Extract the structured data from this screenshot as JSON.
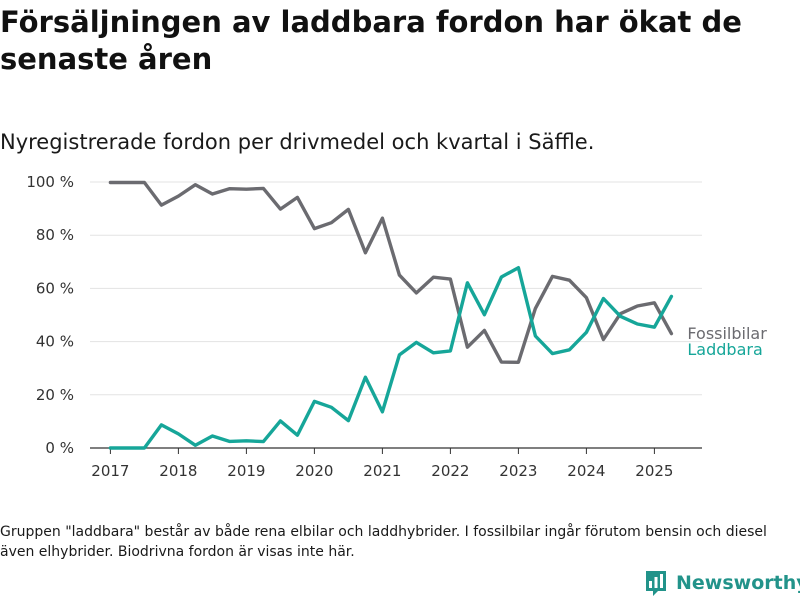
{
  "title": "Försäljningen av laddbara fordon har ökat de senaste åren",
  "subtitle": "Nyregistrerade fordon per drivmedel och kvartal i Säffle.",
  "footnote": "Gruppen \"laddbara\" består av både rena elbilar och laddhybrider. I fossilbilar ingår förutom bensin och diesel även elhybrider. Biodrivna fordon är visas inte här.",
  "brand": {
    "name": "Newsworthy",
    "logo_icon": "bar-chart-logo-icon",
    "color": "#22938a"
  },
  "chart_data": {
    "type": "line",
    "x_tick_labels": [
      "2017",
      "2018",
      "2019",
      "2020",
      "2021",
      "2022",
      "2023",
      "2024",
      "2025"
    ],
    "y_tick_labels": [
      "0 %",
      "20 %",
      "40 %",
      "60 %",
      "80 %",
      "100 %"
    ],
    "y_ticks": [
      0,
      20,
      40,
      60,
      80,
      100
    ],
    "ylim": [
      0,
      100
    ],
    "xlim": [
      2016.7,
      2025.7
    ],
    "grid": true,
    "x": [
      2017.0,
      2017.25,
      2017.5,
      2017.75,
      2018.0,
      2018.25,
      2018.5,
      2018.75,
      2019.0,
      2019.25,
      2019.5,
      2019.75,
      2020.0,
      2020.25,
      2020.5,
      2020.75,
      2021.0,
      2021.25,
      2021.5,
      2021.75,
      2022.0,
      2022.25,
      2022.5,
      2022.75,
      2023.0,
      2023.25,
      2023.5,
      2023.75,
      2024.0,
      2024.25,
      2024.5,
      2024.75,
      2025.0,
      2025.25
    ],
    "series": [
      {
        "name": "Fossilbilar",
        "color": "#6b6b70",
        "values": [
          99.8,
          99.8,
          99.8,
          91.3,
          94.7,
          99.0,
          95.5,
          97.5,
          97.3,
          97.6,
          89.8,
          94.2,
          82.5,
          84.7,
          89.7,
          73.4,
          86.4,
          65.0,
          58.3,
          64.2,
          63.5,
          37.9,
          44.2,
          32.3,
          32.2,
          52.5,
          64.5,
          63.1,
          56.5,
          40.8,
          50.5,
          53.4,
          54.6,
          43.0
        ]
      },
      {
        "name": "Laddbara",
        "color": "#16a699",
        "values": [
          0.0,
          0.0,
          0.0,
          8.7,
          5.3,
          1.0,
          4.5,
          2.5,
          2.7,
          2.4,
          10.2,
          4.8,
          17.5,
          15.3,
          10.3,
          26.6,
          13.6,
          35.0,
          39.7,
          35.8,
          36.5,
          62.1,
          50.1,
          64.3,
          67.8,
          42.1,
          35.5,
          36.9,
          43.5,
          56.2,
          49.5,
          46.6,
          45.4,
          57.0
        ]
      }
    ]
  }
}
